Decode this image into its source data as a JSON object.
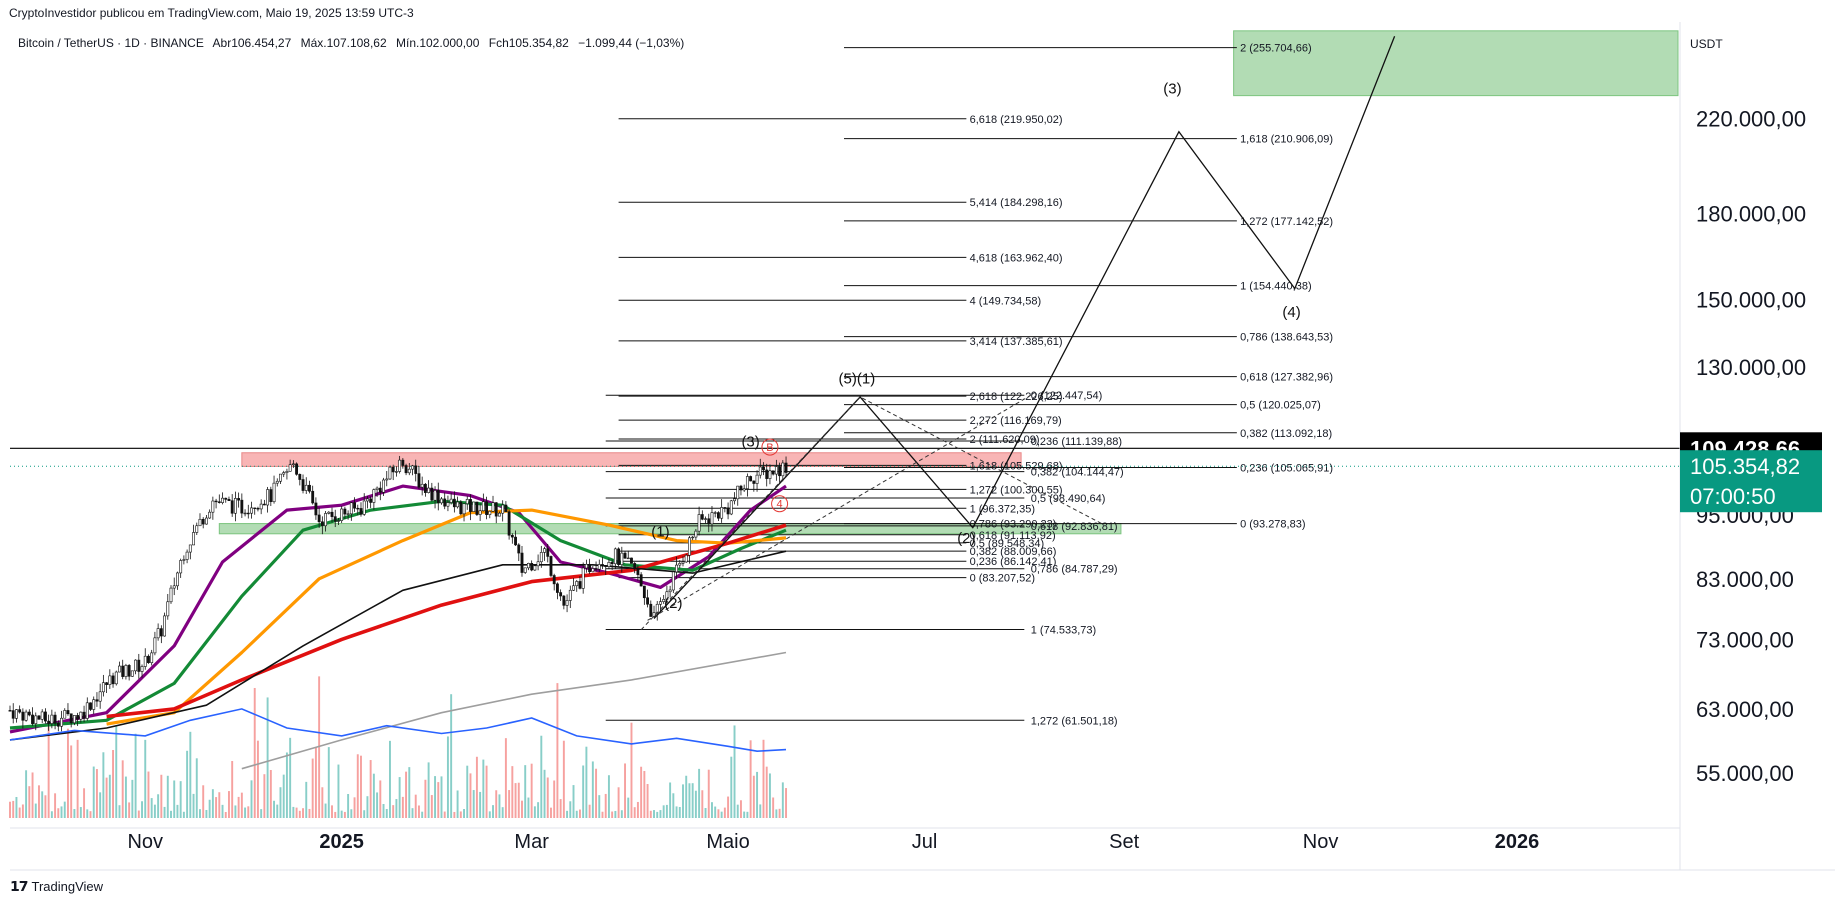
{
  "header": {
    "credit": "CryptoInvestidor publicou em TradingView.com, Maio 19, 2025 13:59 UTC-3",
    "symbol": "Bitcoin / TetherUS · 1D · BINANCE",
    "open": "Abr106.454,27",
    "high": "Máx.107.108,62",
    "low": "Mín.102.000,00",
    "close": "Fch105.354,82",
    "change": "−1.099,44 (−1,03%)"
  },
  "brand": {
    "name": "TradingView"
  },
  "colors": {
    "up": "#26a69a",
    "down": "#ef5350",
    "ma_purple": "#800080",
    "ma_green": "#138a36",
    "ma_orange": "#ff9800",
    "ma_red": "#e01010",
    "ma_black": "#111111",
    "ma_gray": "#9e9e9e",
    "indicator_blue": "#2962ff",
    "price_badge": "#089981",
    "last_badge": "#000000",
    "resistance_zone": "#f7a9a9",
    "support_zone": "#a5d6a7",
    "target_zone": "#a5d6a7"
  },
  "chart_data": {
    "type": "candlestick",
    "title": "",
    "currency": "USDT",
    "y_scale": "log",
    "ylim": [
      50000,
      270000
    ],
    "y_ticks": [
      55000,
      63000,
      73000,
      83000,
      95000,
      130000,
      150000,
      180000,
      220000
    ],
    "y_tick_labels": [
      "55.000,00",
      "63.000,00",
      "73.000,00",
      "83.000,00",
      "95.000,00",
      "130.000,00",
      "150.000,00",
      "180.000,00",
      "220.000,00"
    ],
    "x_range": [
      "2024-09-20",
      "2026-02-20"
    ],
    "x_ticks": [
      {
        "date": "2024-11-01",
        "label": "Nov",
        "bold": false
      },
      {
        "date": "2025-01-01",
        "label": "2025",
        "bold": true
      },
      {
        "date": "2025-03-01",
        "label": "Mar",
        "bold": false
      },
      {
        "date": "2025-05-01",
        "label": "Maio",
        "bold": false
      },
      {
        "date": "2025-07-01",
        "label": "Jul",
        "bold": false
      },
      {
        "date": "2025-09-01",
        "label": "Set",
        "bold": false
      },
      {
        "date": "2025-11-01",
        "label": "Nov",
        "bold": false
      },
      {
        "date": "2026-01-01",
        "label": "2026",
        "bold": true
      }
    ],
    "price_path": [
      [
        "2024-09-20",
        62800
      ],
      [
        "2024-10-01",
        61500
      ],
      [
        "2024-10-12",
        62300
      ],
      [
        "2024-10-22",
        67500
      ],
      [
        "2024-11-01",
        69500
      ],
      [
        "2024-11-06",
        74500
      ],
      [
        "2024-11-13",
        88000
      ],
      [
        "2024-11-22",
        98000
      ],
      [
        "2024-12-01",
        96500
      ],
      [
        "2024-12-10",
        99000
      ],
      [
        "2024-12-17",
        106000
      ],
      [
        "2024-12-25",
        94000
      ],
      [
        "2025-01-07",
        96500
      ],
      [
        "2025-01-20",
        106500
      ],
      [
        "2025-01-27",
        100500
      ],
      [
        "2025-02-05",
        96800
      ],
      [
        "2025-02-20",
        96000
      ],
      [
        "2025-02-26",
        84500
      ],
      [
        "2025-03-05",
        88000
      ],
      [
        "2025-03-11",
        78500
      ],
      [
        "2025-03-20",
        86000
      ],
      [
        "2025-03-27",
        87000
      ],
      [
        "2025-04-02",
        84500
      ],
      [
        "2025-04-08",
        76300
      ],
      [
        "2025-04-15",
        84500
      ],
      [
        "2025-04-22",
        93500
      ],
      [
        "2025-05-01",
        96500
      ],
      [
        "2025-05-08",
        103000
      ],
      [
        "2025-05-13",
        104000
      ],
      [
        "2025-05-19",
        105354
      ]
    ],
    "series": [
      {
        "name": "",
        "color": "#800080",
        "points": [
          [
            "2024-09-20",
            60000
          ],
          [
            "2024-10-20",
            62500
          ],
          [
            "2024-11-10",
            72000
          ],
          [
            "2024-11-25",
            86000
          ],
          [
            "2024-12-15",
            96000
          ],
          [
            "2025-01-01",
            97000
          ],
          [
            "2025-01-20",
            101000
          ],
          [
            "2025-02-10",
            99000
          ],
          [
            "2025-02-25",
            95500
          ],
          [
            "2025-03-10",
            86000
          ],
          [
            "2025-03-25",
            84000
          ],
          [
            "2025-04-10",
            81500
          ],
          [
            "2025-04-25",
            87000
          ],
          [
            "2025-05-08",
            96000
          ],
          [
            "2025-05-19",
            101000
          ]
        ]
      },
      {
        "name": "",
        "color": "#138a36",
        "points": [
          [
            "2024-09-20",
            60500
          ],
          [
            "2024-10-20",
            61500
          ],
          [
            "2024-11-10",
            66500
          ],
          [
            "2024-12-01",
            80000
          ],
          [
            "2024-12-20",
            92000
          ],
          [
            "2025-01-10",
            96000
          ],
          [
            "2025-02-01",
            97800
          ],
          [
            "2025-02-20",
            97000
          ],
          [
            "2025-03-10",
            90000
          ],
          [
            "2025-03-30",
            85500
          ],
          [
            "2025-04-20",
            84500
          ],
          [
            "2025-05-05",
            88500
          ],
          [
            "2025-05-19",
            92000
          ]
        ]
      },
      {
        "name": "",
        "color": "#ff9800",
        "points": [
          [
            "2024-10-20",
            61000
          ],
          [
            "2024-11-10",
            62500
          ],
          [
            "2024-12-01",
            71000
          ],
          [
            "2024-12-25",
            83000
          ],
          [
            "2025-01-20",
            90000
          ],
          [
            "2025-02-10",
            95500
          ],
          [
            "2025-03-01",
            96000
          ],
          [
            "2025-03-25",
            93000
          ],
          [
            "2025-04-15",
            90000
          ],
          [
            "2025-05-01",
            89500
          ],
          [
            "2025-05-19",
            90500
          ]
        ]
      },
      {
        "name": "",
        "color": "#e01010",
        "points": [
          [
            "2024-10-20",
            62000
          ],
          [
            "2024-11-10",
            63000
          ],
          [
            "2024-12-01",
            67000
          ],
          [
            "2025-01-01",
            73000
          ],
          [
            "2025-02-01",
            78500
          ],
          [
            "2025-03-01",
            82500
          ],
          [
            "2025-04-01",
            84500
          ],
          [
            "2025-05-01",
            89500
          ],
          [
            "2025-05-19",
            93000
          ]
        ]
      },
      {
        "name": "",
        "color": "#111111",
        "points": [
          [
            "2024-09-20",
            59000
          ],
          [
            "2024-10-20",
            60500
          ],
          [
            "2024-11-20",
            63500
          ],
          [
            "2024-12-20",
            72000
          ],
          [
            "2025-01-20",
            81000
          ],
          [
            "2025-02-20",
            85500
          ],
          [
            "2025-03-20",
            85500
          ],
          [
            "2025-04-20",
            84000
          ],
          [
            "2025-05-19",
            88000
          ]
        ]
      },
      {
        "name": "",
        "color": "#9e9e9e",
        "points": [
          [
            "2024-12-01",
            55500
          ],
          [
            "2025-01-01",
            59000
          ],
          [
            "2025-02-01",
            62500
          ],
          [
            "2025-03-01",
            65000
          ],
          [
            "2025-04-01",
            67000
          ],
          [
            "2025-05-19",
            71000
          ]
        ]
      }
    ],
    "indicator_blue": [
      [
        "2024-09-20",
        59000
      ],
      [
        "2024-10-10",
        60200
      ],
      [
        "2024-11-01",
        59500
      ],
      [
        "2024-11-15",
        61500
      ],
      [
        "2024-12-01",
        63000
      ],
      [
        "2024-12-15",
        60500
      ],
      [
        "2025-01-01",
        59500
      ],
      [
        "2025-01-15",
        60800
      ],
      [
        "2025-02-01",
        59800
      ],
      [
        "2025-02-15",
        60500
      ],
      [
        "2025-03-01",
        61800
      ],
      [
        "2025-03-15",
        59500
      ],
      [
        "2025-04-01",
        58500
      ],
      [
        "2025-04-15",
        59200
      ],
      [
        "2025-05-01",
        58200
      ],
      [
        "2025-05-10",
        57600
      ],
      [
        "2025-05-19",
        57800
      ]
    ],
    "zones": [
      {
        "kind": "resistance",
        "x0": "2024-12-01",
        "x1": "2025-07-31",
        "y0": 105300,
        "y1": 108400
      },
      {
        "kind": "support",
        "x0": "2024-11-24",
        "x1": "2025-08-31",
        "y0": 91300,
        "y1": 93300
      },
      {
        "kind": "target",
        "x0": "2025-10-05",
        "x1": "2026-02-20",
        "y0": 231000,
        "y1": 265000
      }
    ],
    "levels_set_a": [
      {
        "label": "6,618 (219.950,02)",
        "y": 219950
      },
      {
        "label": "5,414 (184.298,16)",
        "y": 184298
      },
      {
        "label": "4,618 (163.962,40)",
        "y": 163962
      },
      {
        "label": "4 (149.734,58)",
        "y": 149735
      },
      {
        "label": "3,414 (137.385,61)",
        "y": 137386
      },
      {
        "label": "2,618 (122.226,25)",
        "y": 122226
      },
      {
        "label": "2,272 (116.169,79)",
        "y": 116170
      },
      {
        "label": "2 (111.620,09)",
        "y": 111620
      },
      {
        "label": "1,618 (105.529,68)",
        "y": 105530
      },
      {
        "label": "1,272 (100.300,55)",
        "y": 100301
      },
      {
        "label": "1 (96.372,35)",
        "y": 96372
      },
      {
        "label": "0,786 (93.290,23)",
        "y": 93290
      },
      {
        "label": "0,618 (91.113,92)",
        "y": 91114
      },
      {
        "label": "0,5 (89.548,34)",
        "y": 89548
      },
      {
        "label": "0,382 (88.009,66)",
        "y": 88010
      },
      {
        "label": "0,236 (86.142,41)",
        "y": 86142
      },
      {
        "label": "0 (83.207,52)",
        "y": 83208
      }
    ],
    "levels_set_b": [
      {
        "label": "0 (122.447,54)",
        "y": 122448
      },
      {
        "label": "0,236 (111.139,88)",
        "y": 111140
      },
      {
        "label": "0,382 (104.144,47)",
        "y": 104144
      },
      {
        "label": "0,5 (98.490,64)",
        "y": 98491
      },
      {
        "label": "0,618 (92.836,81)",
        "y": 92837
      },
      {
        "label": "0,786 (84.787,29)",
        "y": 84787
      },
      {
        "label": "1 (74.533,73)",
        "y": 74534
      },
      {
        "label": "1,272 (61.501,18)",
        "y": 61501
      }
    ],
    "levels_set_c": [
      {
        "label": "2 (255.704,66)",
        "y": 255705
      },
      {
        "label": "1,618 (210.906,09)",
        "y": 210906
      },
      {
        "label": "1,272 (177.142,52)",
        "y": 177143
      },
      {
        "label": "1 (154.440,38)",
        "y": 154440
      },
      {
        "label": "0,786 (138.643,53)",
        "y": 138644
      },
      {
        "label": "0,618 (127.382,96)",
        "y": 127383
      },
      {
        "label": "0,5 (120.025,07)",
        "y": 120025
      },
      {
        "label": "0,382 (113.092,18)",
        "y": 113092
      },
      {
        "label": "0,236 (105.065,91)",
        "y": 105066
      },
      {
        "label": "0 (93.278,83)",
        "y": 93279
      }
    ],
    "wave_path": [
      [
        "2025-04-08",
        76300
      ],
      [
        "2025-06-11",
        122000
      ],
      [
        "2025-07-16",
        92500
      ],
      [
        "2025-09-18",
        214000
      ],
      [
        "2025-10-24",
        153500
      ],
      [
        "2025-11-24",
        262000
      ]
    ],
    "wave_labels": [
      {
        "label": "(1)",
        "date": "2025-04-10",
        "y": 90800
      },
      {
        "label": "(2)",
        "date": "2025-04-14",
        "y": 78000
      },
      {
        "label": "(3)",
        "date": "2025-05-08",
        "y": 109800
      },
      {
        "label": "(5)(1)",
        "date": "2025-06-10",
        "y": 125500
      },
      {
        "label": "(2)",
        "date": "2025-07-14",
        "y": 89500
      },
      {
        "label": "(3)",
        "date": "2025-09-16",
        "y": 232000
      },
      {
        "label": "(4)",
        "date": "2025-10-23",
        "y": 144500
      }
    ],
    "markers_circled": [
      {
        "label": "B",
        "date": "2025-05-14",
        "y": 109700
      },
      {
        "label": "4",
        "date": "2025-05-17",
        "y": 97300
      }
    ],
    "current_price": {
      "value": "105.354,82",
      "countdown": "07:00:50",
      "y": 105354
    },
    "last_line": {
      "value": "109.428,66",
      "y": 109428
    }
  }
}
